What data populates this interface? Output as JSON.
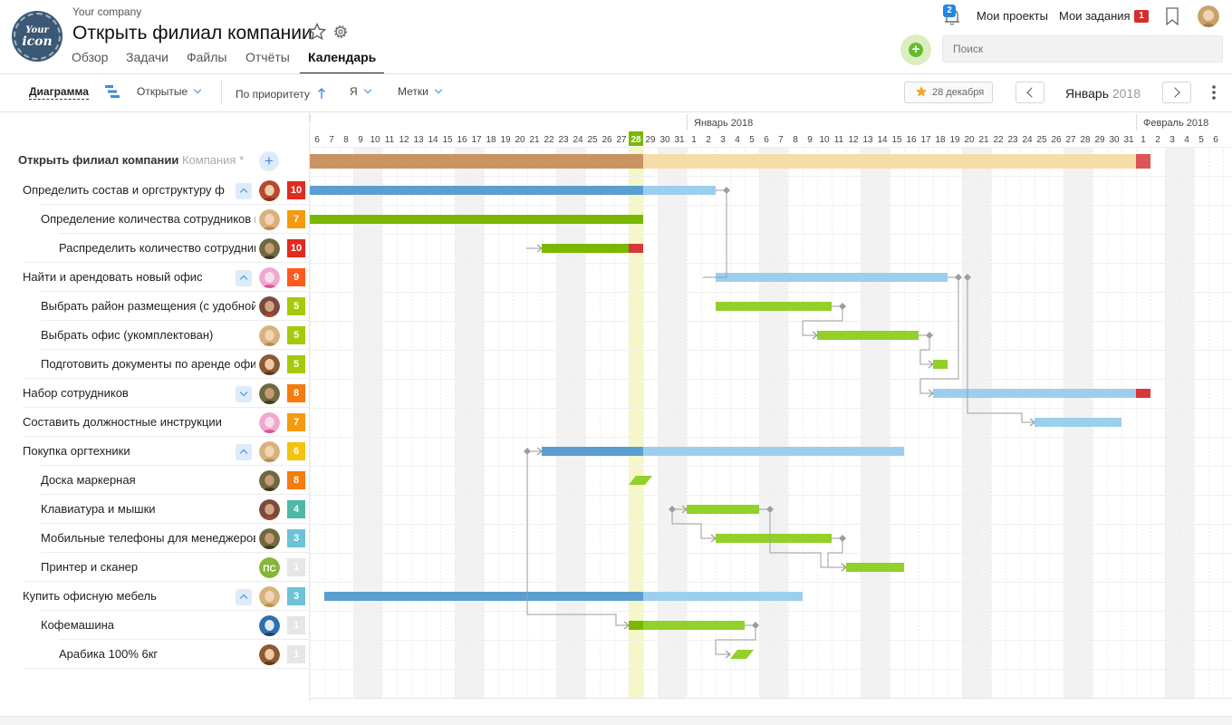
{
  "header": {
    "company": "Your company",
    "title": "Открыть филиал компании",
    "logo_line1": "Your",
    "logo_line2": "icon",
    "tabs": [
      {
        "label": "Обзор",
        "active": false
      },
      {
        "label": "Задачи",
        "active": false
      },
      {
        "label": "Файлы",
        "active": false
      },
      {
        "label": "Отчёты",
        "active": false
      },
      {
        "label": "Календарь",
        "active": true
      }
    ],
    "notifications_count": "2",
    "my_projects": "Мои проекты",
    "my_tasks": "Мои задания",
    "my_tasks_count": "1",
    "search_placeholder": "Поиск"
  },
  "toolbar": {
    "view": "Диаграмма",
    "filter_status": "Открытые",
    "sort": "По приоритету",
    "assignee": "Я",
    "tags": "Метки",
    "today_button": "28 декабря",
    "month": "Январь",
    "year": "2018"
  },
  "timeline": {
    "months": [
      {
        "label": "Январь 2018",
        "start_index": 26
      },
      {
        "label": "Февраль 2018",
        "start_index": 57
      }
    ],
    "days": [
      "6",
      "7",
      "8",
      "9",
      "10",
      "11",
      "12",
      "13",
      "14",
      "15",
      "16",
      "17",
      "18",
      "19",
      "20",
      "21",
      "22",
      "23",
      "24",
      "25",
      "26",
      "27",
      "28",
      "29",
      "30",
      "31",
      "1",
      "2",
      "3",
      "4",
      "5",
      "6",
      "7",
      "8",
      "9",
      "10",
      "11",
      "12",
      "13",
      "14",
      "15",
      "16",
      "17",
      "18",
      "19",
      "20",
      "21",
      "22",
      "23",
      "24",
      "25",
      "26",
      "27",
      "28",
      "29",
      "30",
      "31",
      "1",
      "2",
      "3",
      "4",
      "5",
      "6"
    ],
    "today_index": 22,
    "weekend_indices": [
      3,
      4,
      10,
      11,
      17,
      18,
      24,
      25,
      31,
      32,
      38,
      39,
      45,
      46,
      52,
      53,
      59,
      60
    ]
  },
  "project": {
    "name": "Открыть филиал компании",
    "suffix": "Компания *"
  },
  "tasks": [
    {
      "name": "Определить состав и оргструктуру ф",
      "level": 0,
      "toggle": "up",
      "avatar": "redhair",
      "priority": "10",
      "prio_color": "#e02b20"
    },
    {
      "name": "Определение количества сотрудников в",
      "level": 1,
      "toggle": "",
      "avatar": "blonde",
      "priority": "7",
      "prio_color": "#f59a0c"
    },
    {
      "name": "Распределить количество сотрудников",
      "level": 2,
      "toggle": "",
      "avatar": "man",
      "priority": "10",
      "prio_color": "#e02b20"
    },
    {
      "name": "Найти и арендовать новый офис",
      "level": 0,
      "toggle": "up",
      "avatar": "pinkhat",
      "priority": "9",
      "prio_color": "#ff5a1f"
    },
    {
      "name": "Выбрать район размещения (с удобной",
      "level": 1,
      "toggle": "",
      "avatar": "redbeard",
      "priority": "5",
      "prio_color": "#a6c90a"
    },
    {
      "name": "Выбрать офис (укомплектован)",
      "level": 1,
      "toggle": "",
      "avatar": "blonde",
      "priority": "5",
      "prio_color": "#a6c90a"
    },
    {
      "name": "Подготовить документы по аренде офи",
      "level": 1,
      "toggle": "",
      "avatar": "brown",
      "priority": "5",
      "prio_color": "#a6c90a"
    },
    {
      "name": "Набор сотрудников",
      "level": 0,
      "toggle": "down",
      "avatar": "man",
      "priority": "8",
      "prio_color": "#f57b0c"
    },
    {
      "name": "Составить должностные инструкции",
      "level": 0,
      "toggle": "",
      "avatar": "pinkhat",
      "priority": "7",
      "prio_color": "#f59a0c"
    },
    {
      "name": "Покупка оргтехники",
      "level": 0,
      "toggle": "up",
      "avatar": "blonde",
      "priority": "6",
      "prio_color": "#f5c20c"
    },
    {
      "name": "Доска маркерная",
      "level": 1,
      "toggle": "",
      "avatar": "man",
      "priority": "8",
      "prio_color": "#f57b0c"
    },
    {
      "name": "Клавиатура и мышки",
      "level": 1,
      "toggle": "",
      "avatar": "redbeard",
      "priority": "4",
      "prio_color": "#4db8a8"
    },
    {
      "name": "Мобильные телефоны для менеджеров",
      "level": 1,
      "toggle": "",
      "avatar": "man",
      "priority": "3",
      "prio_color": "#6cc3d5"
    },
    {
      "name": "Принтер и сканер",
      "level": 1,
      "toggle": "",
      "avatar": "initials",
      "initials": "ПС",
      "priority": "1",
      "prio_color": "#e6e6e6"
    },
    {
      "name": "Купить офисную мебель",
      "level": 0,
      "toggle": "up",
      "avatar": "blonde",
      "priority": "3",
      "prio_color": "#6cc3d5"
    },
    {
      "name": "Кофемашина",
      "level": 1,
      "toggle": "",
      "avatar": "mask",
      "priority": "1",
      "prio_color": "#e6e6e6"
    },
    {
      "name": "Арабика 100% 6кг",
      "level": 2,
      "toggle": "",
      "avatar": "brown",
      "priority": "1",
      "prio_color": "#e6e6e6"
    }
  ],
  "bars": {
    "project": {
      "start": 0,
      "end": 57,
      "overdue_end": 58
    },
    "rows": [
      {
        "type": "summary",
        "start": 0,
        "end": 28,
        "done_until": 23
      },
      {
        "type": "task",
        "start": 0,
        "end": 23
      },
      {
        "type": "task",
        "start": 16,
        "end": 23,
        "overdue_from": 22
      },
      {
        "type": "summary",
        "start": 28,
        "end": 44
      },
      {
        "type": "task",
        "start": 28,
        "end": 36
      },
      {
        "type": "task",
        "start": 35,
        "end": 42
      },
      {
        "type": "task",
        "start": 43,
        "end": 44
      },
      {
        "type": "summary",
        "start": 43,
        "end": 58,
        "overdue_from": 57
      },
      {
        "type": "summary",
        "start": 50,
        "end": 56
      },
      {
        "type": "summary",
        "start": 16,
        "end": 41,
        "done_until": 23
      },
      {
        "type": "milestone",
        "start": 22,
        "end": 23
      },
      {
        "type": "task",
        "start": 26,
        "end": 31
      },
      {
        "type": "task",
        "start": 28,
        "end": 36
      },
      {
        "type": "task",
        "start": 37,
        "end": 41
      },
      {
        "type": "summary",
        "start": 1,
        "end": 34,
        "done_until": 23
      },
      {
        "type": "task",
        "start": 22,
        "end": 30,
        "done_until": 23
      },
      {
        "type": "milestone",
        "start": 29,
        "end": 30
      }
    ]
  },
  "colors": {
    "summary_done": "#5b9fd0",
    "summary_todo": "#9ccfee",
    "task_done": "#7ab800",
    "task_todo": "#92d02a",
    "overdue": "#d8373a",
    "project_done": "#c99461",
    "project_todo": "#f6dca8",
    "today": "#f6f7c9",
    "weekend": "#f2f2f2"
  }
}
